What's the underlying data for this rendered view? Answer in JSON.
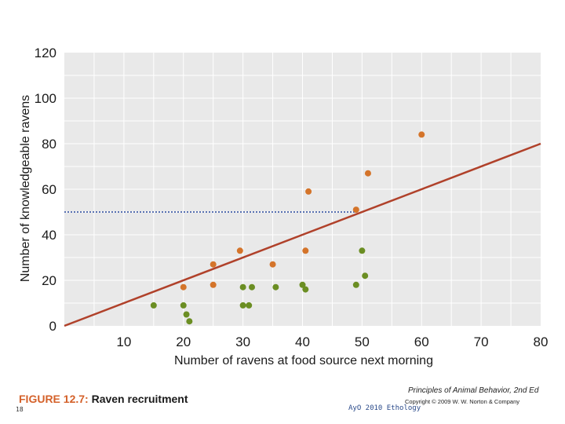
{
  "chart_data": {
    "type": "scatter",
    "xlabel": "Number of ravens at food source next morning",
    "ylabel": "Number of knowledgeable ravens",
    "xlim": [
      0,
      80
    ],
    "ylim": [
      0,
      120
    ],
    "xticks": [
      10,
      20,
      30,
      40,
      50,
      60,
      70,
      80
    ],
    "yticks": [
      0,
      20,
      40,
      60,
      80,
      100,
      120
    ],
    "grid": true,
    "colors": {
      "background": "#e9e9e9",
      "grid": "#ffffff",
      "orange": "#d4742a",
      "green": "#6b8e23",
      "regression": "#b0412a",
      "reference": "#2a4aa0"
    },
    "series": [
      {
        "color": "orange",
        "points": [
          {
            "x": 20,
            "y": 17
          },
          {
            "x": 25,
            "y": 27
          },
          {
            "x": 25,
            "y": 18
          },
          {
            "x": 29.5,
            "y": 33
          },
          {
            "x": 35,
            "y": 27
          },
          {
            "x": 40.5,
            "y": 33
          },
          {
            "x": 41,
            "y": 59
          },
          {
            "x": 49,
            "y": 51
          },
          {
            "x": 51,
            "y": 67
          },
          {
            "x": 60,
            "y": 84
          }
        ]
      },
      {
        "color": "green",
        "points": [
          {
            "x": 15,
            "y": 9
          },
          {
            "x": 20,
            "y": 9
          },
          {
            "x": 20.5,
            "y": 5
          },
          {
            "x": 21,
            "y": 2
          },
          {
            "x": 30,
            "y": 17
          },
          {
            "x": 30,
            "y": 9
          },
          {
            "x": 31.5,
            "y": 17
          },
          {
            "x": 31,
            "y": 9
          },
          {
            "x": 35.5,
            "y": 17
          },
          {
            "x": 40,
            "y": 18
          },
          {
            "x": 40.5,
            "y": 16
          },
          {
            "x": 49,
            "y": 18
          },
          {
            "x": 50,
            "y": 33
          },
          {
            "x": 50.5,
            "y": 22
          }
        ]
      }
    ],
    "regression_line": {
      "x": [
        0,
        80
      ],
      "y": [
        0,
        80
      ]
    },
    "reference_line": {
      "y": 50,
      "x": [
        0,
        49
      ]
    }
  },
  "caption": {
    "figure_number": "FIGURE 12.7:",
    "title": " Raven recruitment"
  },
  "footer": {
    "book_title": "Principles of Animal Behavior, 2nd Ed",
    "copyright": "Copyright © 2009 W. W. Norton & Company",
    "slide_number": "18",
    "course": "AyO 2010 Ethology"
  }
}
